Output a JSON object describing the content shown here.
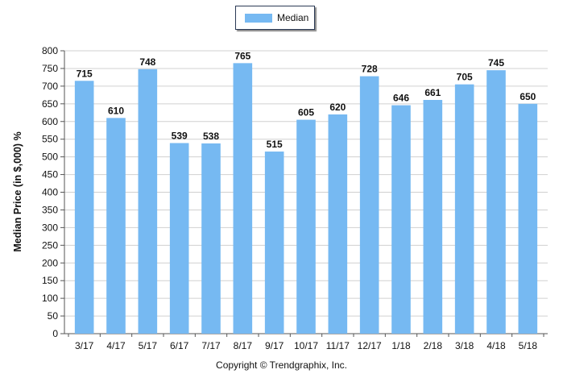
{
  "chart_data": {
    "type": "bar",
    "categories": [
      "3/17",
      "4/17",
      "5/17",
      "6/17",
      "7/17",
      "8/17",
      "9/17",
      "10/17",
      "11/17",
      "12/17",
      "1/18",
      "2/18",
      "3/18",
      "4/18",
      "5/18"
    ],
    "series": [
      {
        "name": "Median",
        "values": [
          715,
          610,
          748,
          539,
          538,
          765,
          515,
          605,
          620,
          728,
          646,
          661,
          705,
          745,
          650
        ]
      }
    ],
    "ylabel": "Median Price (in $,000) %",
    "xlabel": "",
    "ylim": [
      0,
      800
    ],
    "yticks": [
      0,
      50,
      100,
      150,
      200,
      250,
      300,
      350,
      400,
      450,
      500,
      550,
      600,
      650,
      700,
      750,
      800
    ],
    "grid": true,
    "legend_position": "top-center",
    "bar_color": "#76b9f2"
  },
  "footer": "Copyright © Trendgraphix, Inc."
}
